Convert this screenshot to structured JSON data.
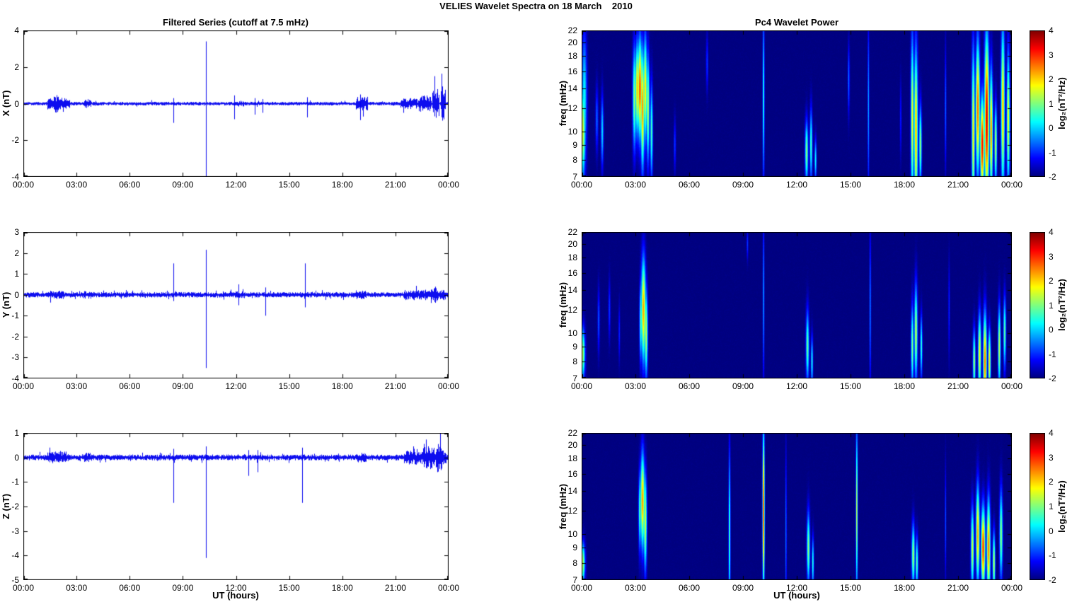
{
  "figure_title": "VELIES Wavelet Spectra on 18 March    2010",
  "style": {
    "line_color": "#0000EE",
    "background": "#FFFFFF",
    "axis_color": "#000000",
    "colormap": "jet"
  },
  "x_axis": {
    "label": "UT (hours)",
    "range_hours": [
      0,
      24
    ],
    "tick_hours": [
      0,
      3,
      6,
      9,
      12,
      15,
      18,
      21,
      24
    ],
    "tick_labels": [
      "00:00",
      "03:00",
      "06:00",
      "09:00",
      "12:00",
      "15:00",
      "18:00",
      "21:00",
      "00:00"
    ]
  },
  "chart_data": [
    {
      "id": "ts_x",
      "type": "line",
      "title": "Filtered Series (cutoff at 7.5 mHz)",
      "ylabel": "X (nT)",
      "ylim": [
        -4,
        4
      ],
      "yticks": [
        4,
        2,
        0,
        -2,
        -4
      ],
      "base_noise_nT": 0.1,
      "noise_segments": [
        [
          1.35,
          2.65,
          0.32
        ],
        [
          1.7,
          2.05,
          0.5
        ],
        [
          3.45,
          3.85,
          0.27
        ],
        [
          12.05,
          12.45,
          0.16
        ],
        [
          18.75,
          19.45,
          0.38
        ],
        [
          21.3,
          22.25,
          0.3
        ],
        [
          22.3,
          23.05,
          0.45
        ],
        [
          23.1,
          23.5,
          0.8
        ],
        [
          23.55,
          23.85,
          0.95
        ]
      ],
      "spikes_columns": [
        "t_hours",
        "min_nT",
        "max_nT"
      ],
      "spikes": [
        [
          8.45,
          -1.05,
          0.3
        ],
        [
          10.3,
          -4.0,
          3.4
        ],
        [
          11.9,
          -0.85,
          0.45
        ],
        [
          13.05,
          -0.6,
          0.3
        ],
        [
          13.5,
          -0.5,
          0.25
        ],
        [
          16.0,
          -0.75,
          0.35
        ],
        [
          19.0,
          -0.9,
          0.5
        ]
      ]
    },
    {
      "id": "ts_y",
      "type": "line",
      "title": "",
      "ylabel": "Y (nT)",
      "ylim": [
        -4,
        3
      ],
      "yticks": [
        3,
        2,
        1,
        0,
        -1,
        -2,
        -3,
        -4
      ],
      "base_noise_nT": 0.13,
      "noise_segments": [
        [
          1.5,
          2.3,
          0.2
        ],
        [
          3.4,
          3.75,
          0.2
        ],
        [
          12.0,
          12.5,
          0.18
        ],
        [
          18.75,
          19.35,
          0.24
        ],
        [
          21.5,
          23.85,
          0.26
        ],
        [
          22.95,
          23.35,
          0.4
        ]
      ],
      "spikes_columns": [
        "t_hours",
        "min_nT",
        "max_nT"
      ],
      "spikes": [
        [
          8.45,
          -0.3,
          1.5
        ],
        [
          10.3,
          -3.5,
          2.15
        ],
        [
          12.15,
          -0.5,
          0.5
        ],
        [
          13.65,
          -1.0,
          0.35
        ],
        [
          15.9,
          -0.6,
          1.5
        ]
      ]
    },
    {
      "id": "ts_z",
      "type": "line",
      "title": "",
      "ylabel": "Z (nT)",
      "ylim": [
        -5,
        1
      ],
      "yticks": [
        1,
        0,
        -1,
        -2,
        -3,
        -4,
        -5
      ],
      "xlabel": "UT (hours)",
      "base_noise_nT": 0.12,
      "noise_segments": [
        [
          1.35,
          2.55,
          0.24
        ],
        [
          3.4,
          3.8,
          0.2
        ],
        [
          18.75,
          19.35,
          0.2
        ],
        [
          21.5,
          23.9,
          0.3
        ],
        [
          22.55,
          23.25,
          0.5
        ],
        [
          23.3,
          23.65,
          0.6
        ]
      ],
      "spikes_columns": [
        "t_hours",
        "min_nT",
        "max_nT"
      ],
      "spikes": [
        [
          8.45,
          -1.85,
          0.35
        ],
        [
          10.3,
          -4.1,
          0.45
        ],
        [
          12.7,
          -0.75,
          0.3
        ],
        [
          13.2,
          -0.6,
          0.3
        ],
        [
          15.75,
          -1.85,
          0.4
        ]
      ]
    },
    {
      "id": "spec_x",
      "type": "heatmap",
      "title": "Pc4 Wavelet Power",
      "ylabel": "freq (mHz)",
      "ylim": [
        7,
        22
      ],
      "yscale": "log",
      "yticks": [
        22,
        20,
        18,
        16,
        14,
        12,
        10,
        9,
        8,
        7
      ],
      "clim": [
        -2,
        4
      ],
      "colorbar_ticks": [
        4,
        3,
        2,
        1,
        0,
        -1,
        -2
      ],
      "colorbar_label": "log₂(nT²/Hz)",
      "events_columns": [
        "t_hours",
        "f_center_mHz",
        "f_min_mHz",
        "f_max_mHz",
        "peak_log2_power",
        "width_hours"
      ],
      "events": [
        [
          0.05,
          10,
          7,
          16,
          1.6,
          0.12
        ],
        [
          0.15,
          13,
          7,
          22,
          0.3,
          0.1
        ],
        [
          0.85,
          11,
          8,
          14,
          -0.6,
          0.05
        ],
        [
          1.15,
          10,
          7,
          13,
          0.1,
          0.05
        ],
        [
          2.95,
          13,
          9,
          22,
          1.2,
          0.07
        ],
        [
          3.1,
          14,
          10,
          22,
          2.2,
          0.07
        ],
        [
          3.25,
          14,
          9,
          21,
          2.9,
          0.09
        ],
        [
          3.4,
          12,
          8,
          22,
          2.5,
          0.07
        ],
        [
          3.55,
          14,
          9,
          22,
          2.0,
          0.07
        ],
        [
          3.7,
          12,
          8,
          20,
          1.4,
          0.06
        ],
        [
          3.9,
          10,
          7,
          16,
          0.8,
          0.05
        ],
        [
          5.2,
          9,
          7,
          11,
          -0.9,
          0.04
        ],
        [
          7.0,
          17,
          13,
          21,
          -0.9,
          0.04
        ],
        [
          10.15,
          13,
          6,
          25,
          0.6,
          0.035
        ],
        [
          12.55,
          8.5,
          7,
          12,
          1.1,
          0.06
        ],
        [
          12.8,
          9,
          7,
          13,
          0.7,
          0.05
        ],
        [
          13.05,
          8,
          7,
          10,
          0.3,
          0.04
        ],
        [
          14.9,
          15,
          11,
          20,
          -0.5,
          0.035
        ],
        [
          16.0,
          12,
          6,
          25,
          -0.2,
          0.03
        ],
        [
          17.8,
          11,
          8,
          15,
          -1.0,
          0.03
        ],
        [
          18.45,
          11,
          6,
          25,
          1.7,
          0.06
        ],
        [
          18.65,
          10,
          6,
          25,
          2.3,
          0.07
        ],
        [
          18.9,
          9,
          7,
          14,
          1.2,
          0.05
        ],
        [
          20.3,
          12,
          7,
          20,
          -0.6,
          0.03
        ],
        [
          21.85,
          10,
          6,
          25,
          1.9,
          0.06
        ],
        [
          22.1,
          12,
          7,
          22,
          2.7,
          0.08
        ],
        [
          22.35,
          9,
          7,
          16,
          3.3,
          0.08
        ],
        [
          22.6,
          11,
          6,
          25,
          3.6,
          0.09
        ],
        [
          22.85,
          10,
          7,
          20,
          2.5,
          0.06
        ],
        [
          23.1,
          9,
          7,
          14,
          1.5,
          0.05
        ],
        [
          23.5,
          12,
          6,
          25,
          2.2,
          0.07
        ],
        [
          23.8,
          11,
          7,
          22,
          1.8,
          0.06
        ]
      ]
    },
    {
      "id": "spec_y",
      "type": "heatmap",
      "title": "",
      "ylabel": "freq (mHz)",
      "ylim": [
        7,
        22
      ],
      "yscale": "log",
      "yticks": [
        22,
        20,
        18,
        16,
        14,
        12,
        10,
        9,
        8,
        7
      ],
      "clim": [
        -2,
        4
      ],
      "colorbar_ticks": [
        4,
        3,
        2,
        1,
        0,
        -1,
        -2
      ],
      "colorbar_label": "log₂(nT²/Hz)",
      "events_columns": [
        "t_hours",
        "f_center_mHz",
        "f_min_mHz",
        "f_max_mHz",
        "peak_log2_power",
        "width_hours"
      ],
      "events": [
        [
          0.05,
          8.5,
          7,
          11,
          1.3,
          0.1
        ],
        [
          0.95,
          11,
          8,
          14,
          -0.7,
          0.04
        ],
        [
          1.55,
          12,
          9,
          15,
          -0.9,
          0.04
        ],
        [
          2.1,
          10,
          8,
          13,
          -1.0,
          0.03
        ],
        [
          3.3,
          11,
          8,
          16,
          0.9,
          0.05
        ],
        [
          3.45,
          12,
          7,
          17,
          2.3,
          0.09
        ],
        [
          3.6,
          10,
          7,
          15,
          1.5,
          0.06
        ],
        [
          9.25,
          20,
          17,
          22,
          -0.9,
          0.03
        ],
        [
          10.15,
          13,
          6,
          25,
          -0.2,
          0.03
        ],
        [
          12.6,
          9,
          7,
          13,
          0.9,
          0.06
        ],
        [
          12.85,
          8,
          7,
          11,
          0.4,
          0.04
        ],
        [
          16.1,
          12,
          6,
          25,
          -0.4,
          0.03
        ],
        [
          18.45,
          9,
          7,
          14,
          1.1,
          0.05
        ],
        [
          18.65,
          10,
          7,
          16,
          1.5,
          0.06
        ],
        [
          18.95,
          9,
          7,
          12,
          0.7,
          0.04
        ],
        [
          20.5,
          12,
          8,
          18,
          -1.0,
          0.03
        ],
        [
          21.9,
          8,
          7,
          12,
          1.3,
          0.05
        ],
        [
          22.2,
          8.5,
          7,
          14,
          1.8,
          0.06
        ],
        [
          22.5,
          8,
          7,
          16,
          2.6,
          0.07
        ],
        [
          22.75,
          8,
          7,
          12,
          2.0,
          0.05
        ],
        [
          23.3,
          9,
          7,
          14,
          1.5,
          0.05
        ],
        [
          23.6,
          10,
          7,
          13,
          0.9,
          0.05
        ]
      ]
    },
    {
      "id": "spec_z",
      "type": "heatmap",
      "title": "",
      "ylabel": "freq (mHz)",
      "ylim": [
        7,
        22
      ],
      "yscale": "log",
      "yticks": [
        22,
        20,
        18,
        16,
        14,
        12,
        10,
        9,
        8,
        7
      ],
      "xlabel": "UT (hours)",
      "clim": [
        -2,
        4
      ],
      "colorbar_ticks": [
        4,
        3,
        2,
        1,
        0,
        -1,
        -2
      ],
      "colorbar_label": "log₂(nT²/Hz)",
      "events_columns": [
        "t_hours",
        "f_center_mHz",
        "f_min_mHz",
        "f_max_mHz",
        "peak_log2_power",
        "width_hours"
      ],
      "events": [
        [
          0.05,
          8,
          7,
          10,
          1.4,
          0.1
        ],
        [
          3.25,
          12,
          8,
          16,
          0.9,
          0.05
        ],
        [
          3.4,
          13,
          8,
          18,
          2.4,
          0.08
        ],
        [
          3.55,
          11,
          7,
          16,
          1.6,
          0.06
        ],
        [
          8.25,
          10,
          6,
          25,
          0.9,
          0.035
        ],
        [
          10.15,
          12,
          6,
          25,
          3.1,
          0.04
        ],
        [
          11.4,
          10,
          6,
          25,
          -0.4,
          0.025
        ],
        [
          12.65,
          9,
          7,
          13,
          1.1,
          0.06
        ],
        [
          12.9,
          8,
          7,
          11,
          0.5,
          0.04
        ],
        [
          15.35,
          12,
          6,
          25,
          1.6,
          0.035
        ],
        [
          18.5,
          8.5,
          7,
          12,
          1.3,
          0.06
        ],
        [
          18.7,
          8,
          7,
          11,
          0.8,
          0.05
        ],
        [
          20.3,
          11,
          7,
          18,
          -0.7,
          0.025
        ],
        [
          21.8,
          9,
          7,
          14,
          1.5,
          0.06
        ],
        [
          22.1,
          10,
          7,
          16,
          2.3,
          0.07
        ],
        [
          22.4,
          9,
          7,
          14,
          3.0,
          0.08
        ],
        [
          22.7,
          9,
          7,
          16,
          2.6,
          0.07
        ],
        [
          23.0,
          8,
          7,
          12,
          1.5,
          0.05
        ],
        [
          23.4,
          10,
          7,
          15,
          1.2,
          0.06
        ]
      ]
    }
  ]
}
